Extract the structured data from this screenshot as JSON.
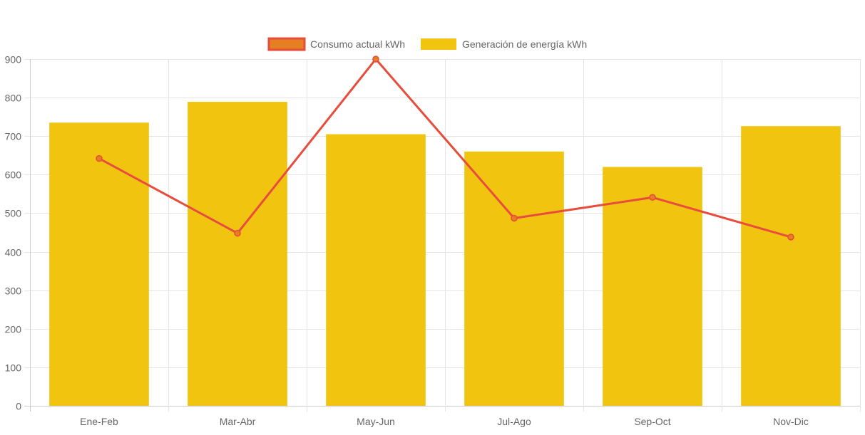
{
  "chart_data": {
    "type": "bar",
    "categories": [
      "Ene-Feb",
      "Mar-Abr",
      "May-Jun",
      "Jul-Ago",
      "Sep-Oct",
      "Nov-Dic"
    ],
    "series": [
      {
        "name": "Consumo actual kWh",
        "type": "line",
        "values": [
          642,
          448,
          900,
          487,
          541,
          438
        ],
        "color": "#e74c3c",
        "point_color": "#e67e22"
      },
      {
        "name": "Generación de energía kWh",
        "type": "bar",
        "values": [
          735,
          789,
          705,
          660,
          620,
          726
        ],
        "color": "#f1c40f"
      }
    ],
    "ylim": [
      0,
      900
    ],
    "yticks": [
      0,
      100,
      200,
      300,
      400,
      500,
      600,
      700,
      800,
      900
    ],
    "grid": true,
    "legend": "top-center"
  }
}
